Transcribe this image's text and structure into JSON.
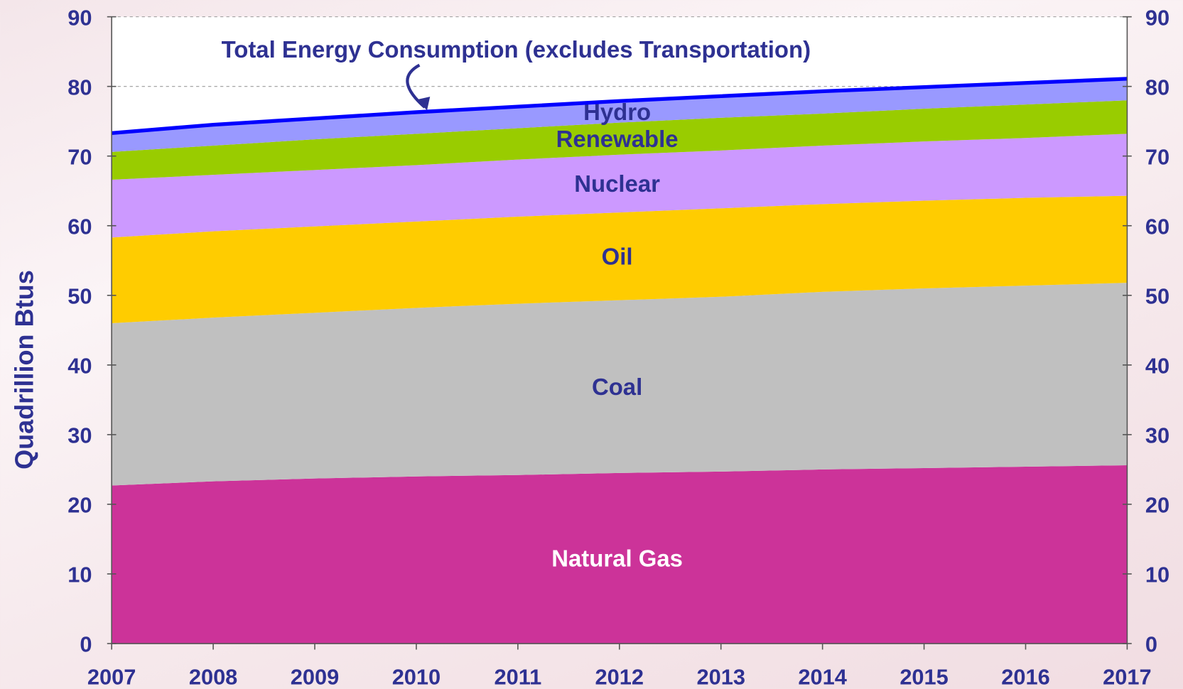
{
  "chart_data": {
    "type": "stacked_area",
    "y_label": "Quadrillion Btus",
    "x": [
      2007,
      2008,
      2009,
      2010,
      2011,
      2012,
      2013,
      2014,
      2015,
      2016,
      2017
    ],
    "xlim": [
      2007,
      2017
    ],
    "xticks": [
      2007,
      2008,
      2009,
      2010,
      2011,
      2012,
      2013,
      2014,
      2015,
      2016,
      2017
    ],
    "ylim": [
      0,
      90
    ],
    "yticks": [
      0,
      10,
      20,
      30,
      40,
      50,
      60,
      70,
      80,
      90
    ],
    "y2lim": [
      0,
      90
    ],
    "y2ticks": [
      0,
      10,
      20,
      30,
      40,
      50,
      60,
      70,
      80,
      90
    ],
    "grid": true,
    "series": [
      {
        "name": "Natural Gas",
        "color": "#cc3399",
        "label_color": "#ffffff",
        "values": [
          22.7,
          23.3,
          23.7,
          24.0,
          24.2,
          24.5,
          24.7,
          25.0,
          25.2,
          25.4,
          25.6
        ]
      },
      {
        "name": "Coal",
        "color": "#c0c0c0",
        "label_color": "#2e3192",
        "values": [
          23.3,
          23.5,
          23.8,
          24.2,
          24.6,
          24.8,
          25.1,
          25.5,
          25.8,
          26.0,
          26.2
        ]
      },
      {
        "name": "Oil",
        "color": "#ffcc00",
        "label_color": "#2e3192",
        "values": [
          12.3,
          12.4,
          12.4,
          12.4,
          12.5,
          12.6,
          12.7,
          12.6,
          12.6,
          12.6,
          12.5
        ]
      },
      {
        "name": "Nuclear",
        "color": "#cc99ff",
        "label_color": "#2e3192",
        "values": [
          8.3,
          8.1,
          8.1,
          8.1,
          8.2,
          8.3,
          8.3,
          8.4,
          8.5,
          8.6,
          8.9
        ]
      },
      {
        "name": "Renewable",
        "color": "#99cc00",
        "label_color": "#2e3192",
        "values": [
          4.0,
          4.2,
          4.4,
          4.5,
          4.5,
          4.6,
          4.7,
          4.6,
          4.7,
          4.8,
          4.8
        ]
      },
      {
        "name": "Hydro",
        "color": "#9999ff",
        "label_color": "#2e3192",
        "values": [
          2.7,
          3.0,
          3.0,
          3.1,
          3.1,
          3.1,
          3.1,
          3.2,
          3.1,
          3.1,
          3.1
        ]
      }
    ],
    "total_line": {
      "name": "Total Energy Consumption (excludes Transportation)",
      "color": "#0000ff",
      "values": [
        73.3,
        74.5,
        75.4,
        76.3,
        77.1,
        77.9,
        78.6,
        79.3,
        79.9,
        80.5,
        81.1
      ]
    }
  }
}
